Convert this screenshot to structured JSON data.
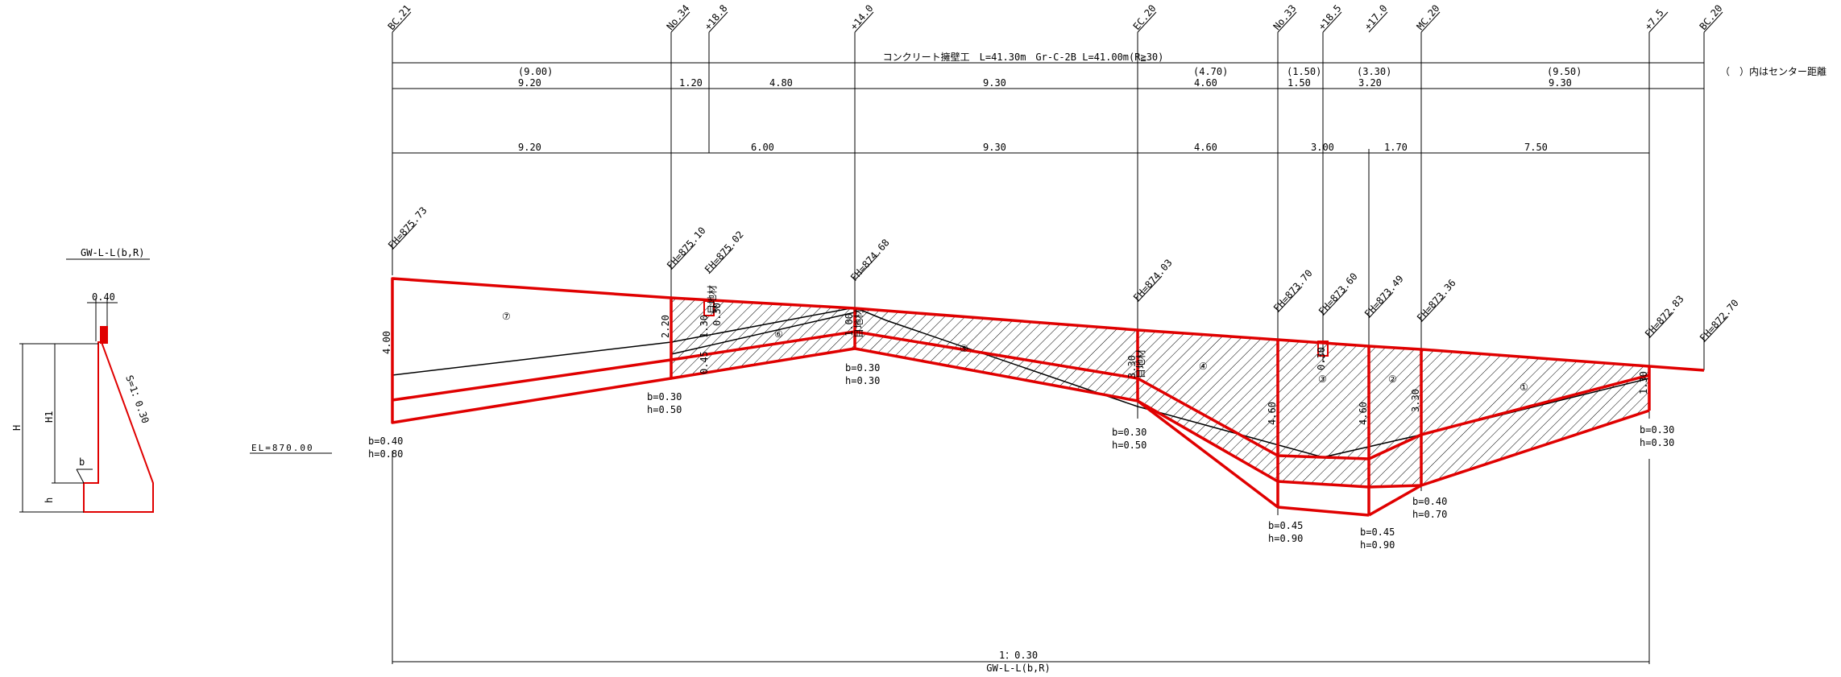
{
  "header": {
    "title": "コンクリート擁壁工　L=41.30m　Gr-C-2B L=41.00m(R≧30)",
    "center_note": "（　）内はセンター距離",
    "stations": [
      {
        "label": "BC.21"
      },
      {
        "label": "No.34"
      },
      {
        "label": "+18.8"
      },
      {
        "label": "+14.0"
      },
      {
        "label": "EC.20"
      },
      {
        "label": "No.33"
      },
      {
        "label": "+18.5"
      },
      {
        "label": "+17.0"
      },
      {
        "label": "MC.20"
      },
      {
        "label": "+7.5"
      },
      {
        "label": "BC.20"
      }
    ]
  },
  "dimensions": {
    "center_distances": [
      "(9.00)",
      "(4.70)",
      "(1.50)",
      "(3.30)",
      "(9.50)"
    ],
    "row1": [
      "9.20",
      "1.20",
      "4.80",
      "9.30",
      "4.60",
      "1.50",
      "3.20",
      "9.30"
    ],
    "row2": [
      "9.20",
      "6.00",
      "9.30",
      "4.60",
      "3.00",
      "1.70",
      "7.50"
    ]
  },
  "fh_labels": [
    {
      "label": "FH=875.73"
    },
    {
      "label": "FH=875.10"
    },
    {
      "label": "FH=875.02"
    },
    {
      "label": "FH=874.68"
    },
    {
      "label": "FH=874.03"
    },
    {
      "label": "FH=873.70"
    },
    {
      "label": "FH=873.60"
    },
    {
      "label": "FH=873.49"
    },
    {
      "label": "FH=873.36"
    },
    {
      "label": "FH=872.83"
    },
    {
      "label": "FH=872.70"
    }
  ],
  "heights": [
    "4.00",
    "2.20",
    "1.30",
    "0.45",
    "1.00",
    "3.30",
    "4.60",
    "4.60",
    "3.30",
    "1.30"
  ],
  "wall_numbers": [
    "⑦",
    "⑥",
    "⑤",
    "④",
    "③",
    "②",
    "①"
  ],
  "footings": [
    {
      "b": "b=0.40",
      "h": "h=0.80"
    },
    {
      "b": "b=0.30",
      "h": "h=0.50"
    },
    {
      "b": "b=0.30",
      "h": "h=0.30"
    },
    {
      "b": "b=0.30",
      "h": "h=0.50"
    },
    {
      "b": "b=0.45",
      "h": "h=0.90"
    },
    {
      "b": "b=0.45",
      "h": "h=0.90"
    },
    {
      "b": "b=0.40",
      "h": "h=0.70"
    },
    {
      "b": "b=0.30",
      "h": "h=0.30"
    }
  ],
  "mini_labels": [
    "0.30",
    "0.30"
  ],
  "vertical_notes": [
    "目地材",
    "目地材",
    "目地材"
  ],
  "el_label": "EL=870.00",
  "bottom": {
    "ratio": "1：0.30",
    "type": "GW-L-L(b,R)"
  },
  "detail": {
    "title": "GW-L-L(b,R)",
    "top_width": "0.40",
    "H": "H",
    "H1": "H1",
    "h": "h",
    "b": "b",
    "slope": "S=1：0.30"
  },
  "colors": {
    "wall": "#e00000",
    "line": "#000000"
  }
}
